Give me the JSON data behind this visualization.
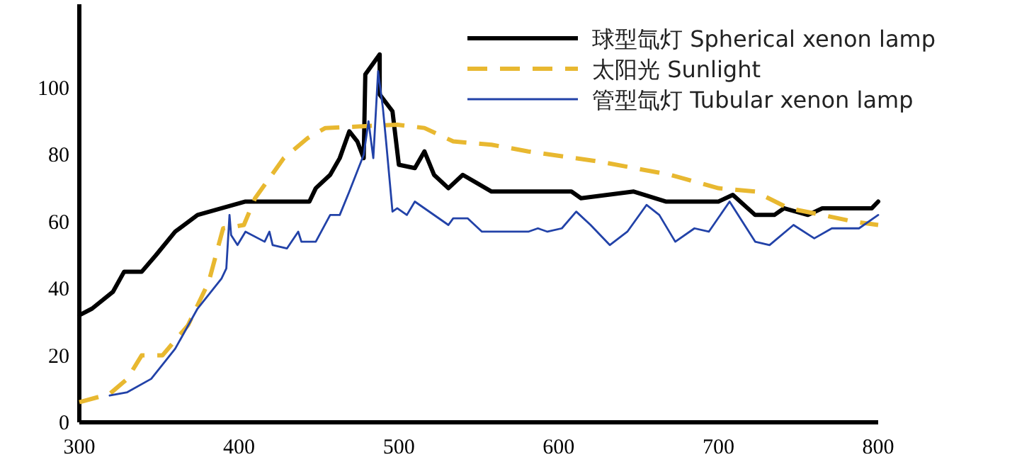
{
  "chart_data": {
    "type": "line",
    "xlim": [
      300,
      800
    ],
    "ylim": [
      0,
      125
    ],
    "xticks": [
      300,
      400,
      500,
      600,
      700,
      800
    ],
    "yticks": [
      0,
      20,
      40,
      60,
      80,
      100
    ],
    "legend": "top right",
    "grid": false,
    "series": [
      {
        "name": "球型氙灯 Spherical xenon lamp",
        "color": "#000000",
        "line_style": "solid",
        "x": [
          300,
          308,
          321,
          328,
          339,
          348,
          360,
          374,
          389,
          404,
          428,
          444,
          448,
          457,
          463,
          469,
          474,
          478,
          479,
          488,
          488,
          496,
          500,
          510,
          516,
          522,
          531,
          540,
          558,
          570,
          608,
          614,
          647,
          667,
          700,
          709,
          723,
          735,
          741,
          756,
          765,
          796,
          800
        ],
        "values": [
          32,
          34,
          39,
          45,
          45,
          50,
          57,
          62,
          64,
          66,
          66,
          66,
          70,
          74,
          79,
          87,
          84,
          79,
          104,
          110,
          98,
          93,
          77,
          76,
          81,
          74,
          70,
          74,
          69,
          69,
          69,
          67,
          69,
          66,
          66,
          68,
          62,
          62,
          64,
          62,
          64,
          64,
          66
        ]
      },
      {
        "name": "太阳光 Sunlight",
        "color": "#e8b830",
        "line_style": "dashed",
        "x": [
          300,
          319,
          330,
          339,
          352,
          368,
          381,
          390,
          403,
          410,
          428,
          443,
          454,
          499,
          516,
          534,
          558,
          581,
          625,
          670,
          700,
          723,
          744,
          765,
          785,
          800
        ],
        "values": [
          6,
          8.5,
          13,
          20,
          20,
          29,
          42,
          58,
          59,
          67,
          79,
          85,
          88,
          89,
          88,
          84,
          83,
          81,
          78,
          74,
          70,
          69,
          64,
          62,
          60,
          59
        ]
      },
      {
        "name": "管型氙灯 Tubular xenon lamp",
        "color": "#2242a8",
        "line_style": "solid",
        "x": [
          319,
          330,
          345,
          360,
          374,
          389,
          392,
          394,
          395,
          399,
          404,
          416,
          419,
          421,
          430,
          437,
          439,
          448,
          457,
          463,
          469,
          478,
          481,
          484,
          487,
          490,
          492,
          496,
          499,
          505,
          510,
          531,
          534,
          543,
          552,
          581,
          587,
          593,
          602,
          611,
          620,
          632,
          643,
          655,
          663,
          673,
          685,
          694,
          707,
          723,
          732,
          747,
          760,
          771,
          788,
          800
        ],
        "values": [
          8,
          9,
          13,
          22,
          34,
          43,
          46,
          62,
          56,
          53,
          57,
          54,
          57,
          53,
          52,
          57,
          54,
          54,
          62,
          62,
          69,
          80,
          90,
          79,
          105,
          94,
          84,
          63,
          64,
          62,
          66,
          59,
          61,
          61,
          57,
          57,
          58,
          57,
          58,
          63,
          59,
          53,
          57,
          65,
          62,
          54,
          58,
          57,
          66,
          54,
          53,
          59,
          55,
          58,
          58,
          62
        ]
      }
    ]
  }
}
